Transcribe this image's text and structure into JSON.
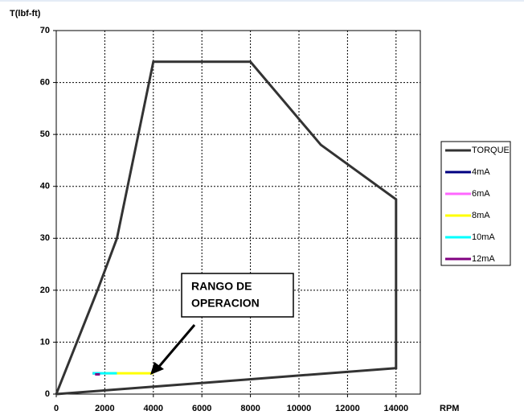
{
  "chart_data": {
    "type": "line",
    "ylabel": "T(lbf-ft)",
    "xlabel": "RPM",
    "xlim": [
      0,
      15000
    ],
    "xticks": [
      0,
      2000,
      4000,
      6000,
      8000,
      10000,
      12000,
      14000
    ],
    "ylim": [
      0,
      70
    ],
    "yticks": [
      0,
      10,
      20,
      30,
      40,
      50,
      60,
      70
    ],
    "grid": true,
    "legend": "right",
    "annotation": [
      "RANGO DE",
      "OPERACION"
    ],
    "series": [
      {
        "name": "TORQUE",
        "color": "#333333",
        "x": [
          0,
          1700,
          2500,
          4000,
          8000,
          10900,
          14000,
          14000,
          0
        ],
        "values": [
          0,
          20,
          30,
          64,
          64,
          48,
          37.5,
          5,
          0
        ]
      },
      {
        "name": "4mA",
        "color": "#000080",
        "x": [
          1500,
          1800
        ],
        "values": [
          4,
          4
        ]
      },
      {
        "name": "6mA",
        "color": "#ff66ff",
        "x": [
          1550,
          1900
        ],
        "values": [
          4,
          4
        ]
      },
      {
        "name": "8mA",
        "color": "#ffff00",
        "x": [
          2000,
          4000
        ],
        "values": [
          4,
          4
        ]
      },
      {
        "name": "10mA",
        "color": "#00ffff",
        "x": [
          1500,
          2500
        ],
        "values": [
          4,
          4
        ]
      },
      {
        "name": "12mA",
        "color": "#800080",
        "x": [
          1600,
          1800
        ],
        "values": [
          3.8,
          3.8
        ]
      }
    ]
  }
}
